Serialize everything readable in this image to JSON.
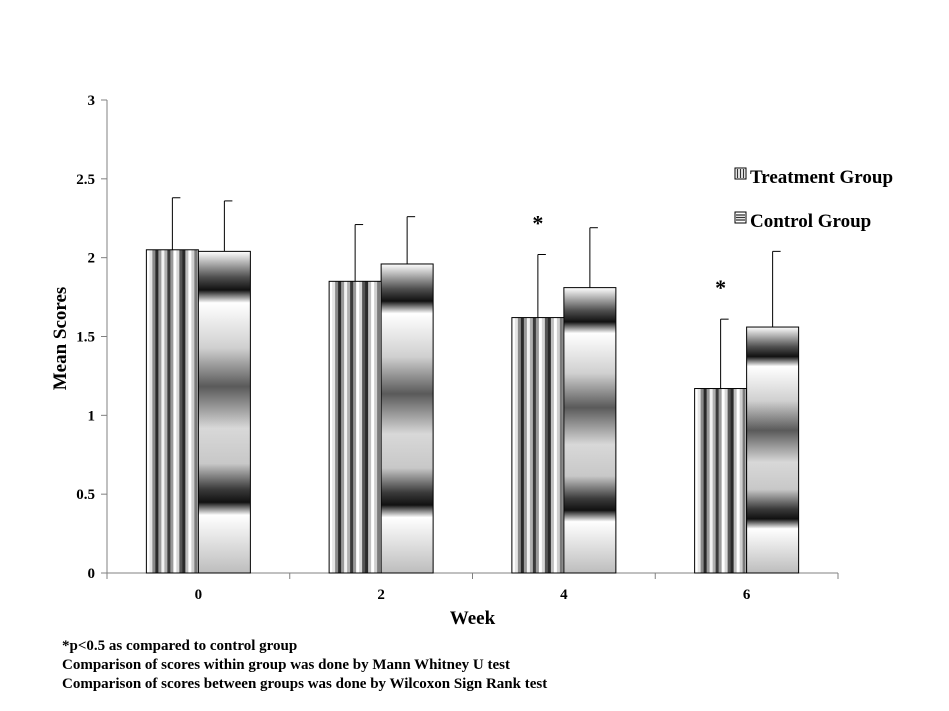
{
  "chart_data": {
    "type": "bar",
    "categories": [
      "0",
      "2",
      "4",
      "6"
    ],
    "series": [
      {
        "name": "Treatment Group",
        "values": [
          2.05,
          1.85,
          1.62,
          1.17
        ],
        "errors": [
          0.33,
          0.36,
          0.4,
          0.44
        ]
      },
      {
        "name": "Control Group",
        "values": [
          2.04,
          1.96,
          1.81,
          1.56
        ],
        "errors": [
          0.32,
          0.3,
          0.38,
          0.48
        ]
      }
    ],
    "significance_marks": [
      {
        "category": "4",
        "series": "Treatment Group",
        "mark": "*"
      },
      {
        "category": "6",
        "series": "Treatment Group",
        "mark": "*"
      }
    ],
    "xlabel": "Week",
    "ylabel": "Mean Scores",
    "ylim": [
      0,
      3
    ],
    "yticks": [
      "0",
      "0.5",
      "1",
      "1.5",
      "2",
      "2.5",
      "3"
    ],
    "grid": false,
    "legend_position": "right",
    "error_bars": "upper"
  },
  "notes": [
    "*p<0.5 as compared to control group",
    "Comparison of scores within group was done by Mann Whitney U test",
    "Comparison of scores between groups was done by Wilcoxon Sign Rank test"
  ]
}
